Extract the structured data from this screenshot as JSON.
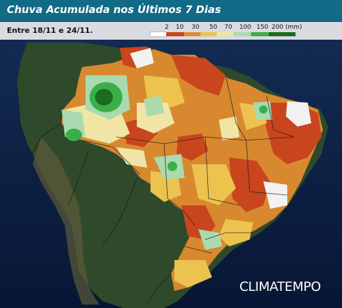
{
  "header": {
    "title": "Chuva Acumulada nos Últimos 7 Dias"
  },
  "period": {
    "label": "Entre 18/11 e 24/11."
  },
  "legend": {
    "unit": "(mm)",
    "items": [
      {
        "label": "2",
        "color": "#ffffff"
      },
      {
        "label": "10",
        "color": "#c8451e"
      },
      {
        "label": "30",
        "color": "#de8a3a"
      },
      {
        "label": "50",
        "color": "#ecc34e"
      },
      {
        "label": "70",
        "color": "#efe6a6"
      },
      {
        "label": "100",
        "color": "#a9dab0"
      },
      {
        "label": "150",
        "color": "#3cae49"
      },
      {
        "label": "200",
        "color": "#1c6b1e"
      }
    ]
  },
  "brand": {
    "logo_text": "CLIMATEMPO"
  },
  "colors": {
    "ocean": "#0b1a3a",
    "land": "#2f4a2a",
    "title_bar": "#116a86"
  }
}
